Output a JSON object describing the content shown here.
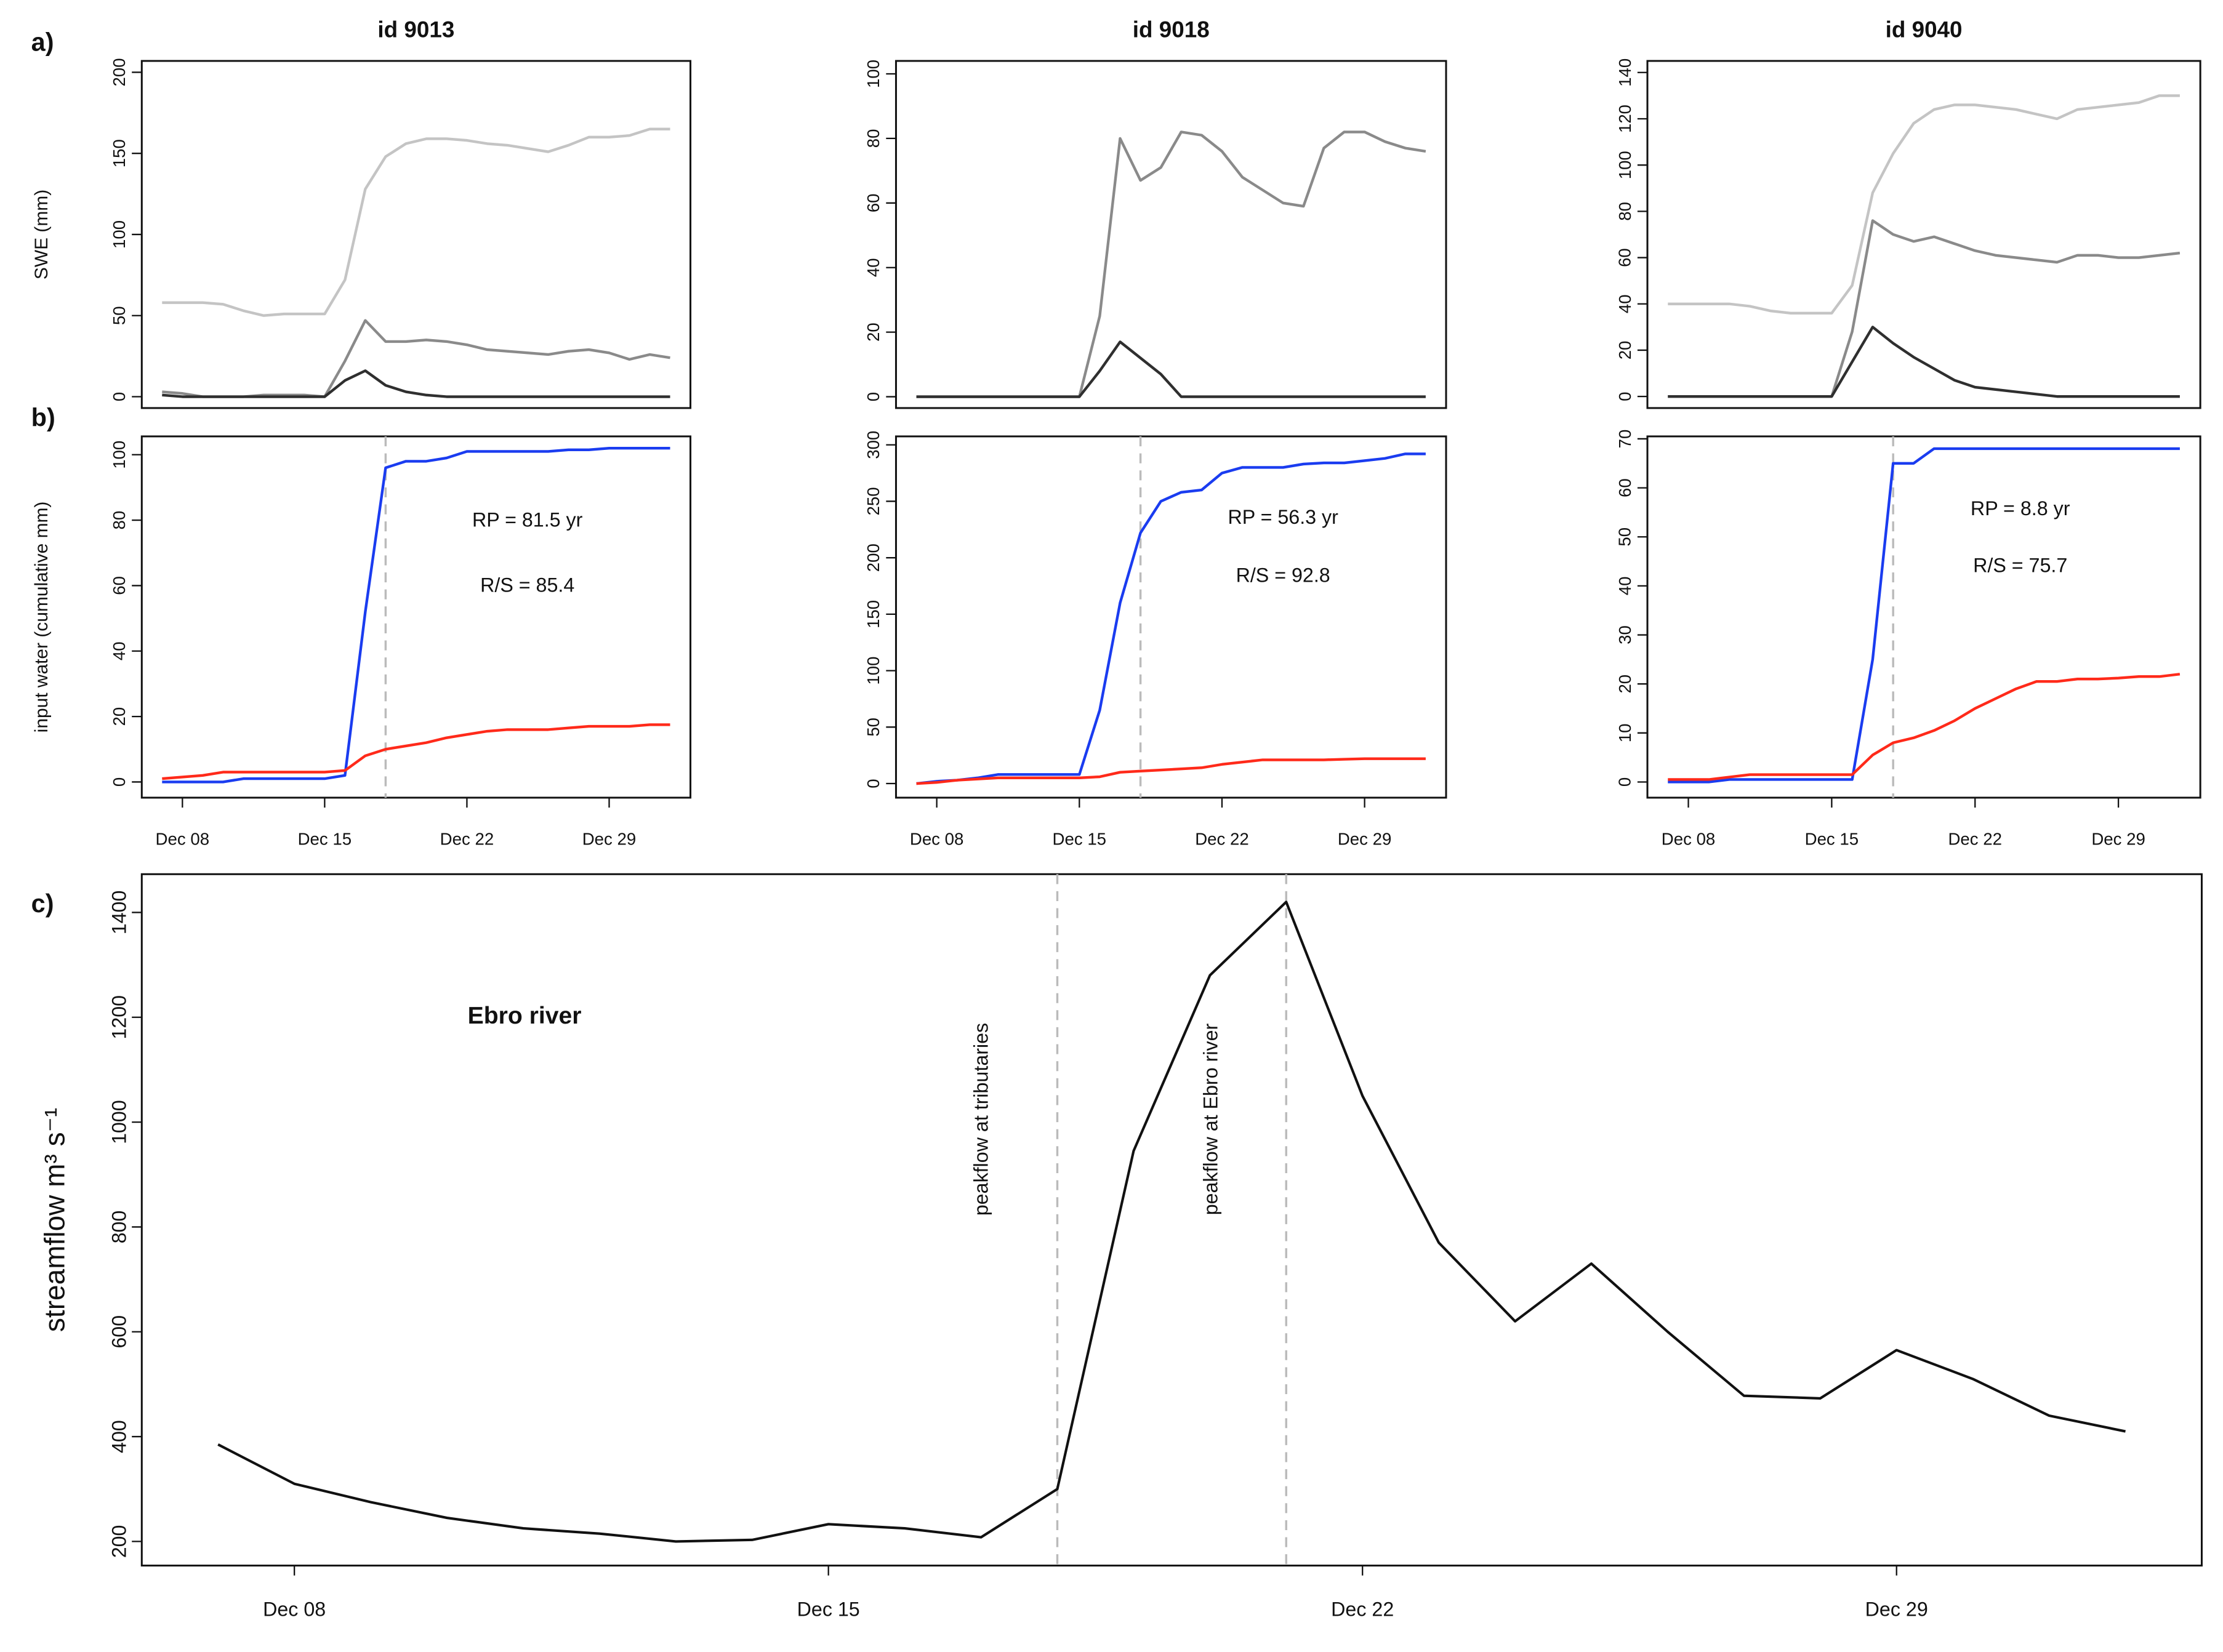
{
  "chart_data": [
    {
      "type": "line",
      "panel_label": "a)",
      "title": "id 9013",
      "ylabel": "SWE (mm)",
      "x": [
        7,
        8,
        9,
        10,
        11,
        12,
        13,
        14,
        15,
        16,
        17,
        18,
        19,
        20,
        21,
        22,
        23,
        24,
        25,
        26,
        27,
        28,
        29,
        30,
        31,
        32
      ],
      "xlim": [
        6,
        33
      ],
      "ylim": [
        -7,
        207
      ],
      "yticks": [
        0,
        50,
        100,
        150,
        200
      ],
      "series": [
        {
          "color": "#c4c4c4",
          "values": [
            58,
            58,
            58,
            57,
            53,
            50,
            51,
            51,
            51,
            72,
            128,
            148,
            156,
            159,
            159,
            158,
            156,
            155,
            153,
            151,
            155,
            160,
            160,
            161,
            165,
            165
          ]
        },
        {
          "color": "#8a8a8a",
          "values": [
            3,
            2,
            0,
            0,
            0,
            1,
            1,
            1,
            0,
            22,
            47,
            34,
            34,
            35,
            34,
            32,
            29,
            28,
            27,
            26,
            28,
            29,
            27,
            23,
            26,
            24
          ]
        },
        {
          "color": "#2f2f2f",
          "values": [
            1,
            0,
            0,
            0,
            0,
            0,
            0,
            0,
            0,
            10,
            16,
            7,
            3,
            1,
            0,
            0,
            0,
            0,
            0,
            0,
            0,
            0,
            0,
            0,
            0,
            0
          ]
        }
      ]
    },
    {
      "type": "line",
      "title": "id 9018",
      "x": [
        7,
        8,
        9,
        10,
        11,
        12,
        13,
        14,
        15,
        16,
        17,
        18,
        19,
        20,
        21,
        22,
        23,
        24,
        25,
        26,
        27,
        28,
        29,
        30,
        31,
        32
      ],
      "xlim": [
        6,
        33
      ],
      "ylim": [
        -3.5,
        104
      ],
      "yticks": [
        0,
        20,
        40,
        60,
        80,
        100
      ],
      "series": [
        {
          "color": "#8a8a8a",
          "values": [
            0,
            0,
            0,
            0,
            0,
            0,
            0,
            0,
            0,
            25,
            80,
            67,
            71,
            82,
            81,
            76,
            68,
            64,
            60,
            59,
            77,
            82,
            82,
            79,
            77,
            76
          ]
        },
        {
          "color": "#2f2f2f",
          "values": [
            0,
            0,
            0,
            0,
            0,
            0,
            0,
            0,
            0,
            8,
            17,
            12,
            7,
            0,
            0,
            0,
            0,
            0,
            0,
            0,
            0,
            0,
            0,
            0,
            0,
            0
          ]
        }
      ]
    },
    {
      "type": "line",
      "title": "id 9040",
      "x": [
        7,
        8,
        9,
        10,
        11,
        12,
        13,
        14,
        15,
        16,
        17,
        18,
        19,
        20,
        21,
        22,
        23,
        24,
        25,
        26,
        27,
        28,
        29,
        30,
        31,
        32
      ],
      "xlim": [
        6,
        33
      ],
      "ylim": [
        -5,
        145
      ],
      "yticks": [
        0,
        20,
        40,
        60,
        80,
        100,
        120,
        140
      ],
      "series": [
        {
          "color": "#c4c4c4",
          "values": [
            40,
            40,
            40,
            40,
            39,
            37,
            36,
            36,
            36,
            48,
            88,
            105,
            118,
            124,
            126,
            126,
            125,
            124,
            122,
            120,
            124,
            125,
            126,
            127,
            130,
            130
          ]
        },
        {
          "color": "#8a8a8a",
          "values": [
            0,
            0,
            0,
            0,
            0,
            0,
            0,
            0,
            0,
            28,
            76,
            70,
            67,
            69,
            66,
            63,
            61,
            60,
            59,
            58,
            61,
            61,
            60,
            60,
            61,
            62
          ]
        },
        {
          "color": "#2f2f2f",
          "values": [
            0,
            0,
            0,
            0,
            0,
            0,
            0,
            0,
            0,
            15,
            30,
            23,
            17,
            12,
            7,
            4,
            3,
            2,
            1,
            0,
            0,
            0,
            0,
            0,
            0,
            0
          ]
        }
      ]
    },
    {
      "type": "line",
      "panel_label": "b)",
      "ylabel": "input water (cumulative mm)",
      "x": [
        7,
        8,
        9,
        10,
        11,
        12,
        13,
        14,
        15,
        16,
        17,
        18,
        19,
        20,
        21,
        22,
        23,
        24,
        25,
        26,
        27,
        28,
        29,
        30,
        31,
        32
      ],
      "xlim": [
        6,
        33
      ],
      "ylim": [
        -4.8,
        105.6
      ],
      "yticks": [
        0,
        20,
        40,
        60,
        80,
        100
      ],
      "xticks": [
        {
          "value": 8,
          "label": "Dec 08"
        },
        {
          "value": 15,
          "label": "Dec 15"
        },
        {
          "value": 22,
          "label": "Dec 22"
        },
        {
          "value": 29,
          "label": "Dec 29"
        }
      ],
      "vlines": [
        18
      ],
      "annotations": [
        "RP = 81.5 yr",
        "R/S = 85.4"
      ],
      "series": [
        {
          "color": "#1a3cf0",
          "values": [
            0,
            0,
            0,
            0,
            1,
            1,
            1,
            1,
            1,
            2,
            52,
            96,
            98,
            98,
            99,
            101,
            101,
            101,
            101,
            101,
            101.5,
            101.5,
            102,
            102,
            102,
            102
          ]
        },
        {
          "color": "#ff2a1a",
          "values": [
            1,
            1.5,
            2,
            3,
            3,
            3,
            3,
            3,
            3,
            3.5,
            8,
            10,
            11,
            12,
            13.5,
            14.5,
            15.5,
            16,
            16,
            16,
            16.5,
            17,
            17,
            17,
            17.5,
            17.5
          ]
        }
      ]
    },
    {
      "type": "line",
      "x": [
        7,
        8,
        9,
        10,
        11,
        12,
        13,
        14,
        15,
        16,
        17,
        18,
        19,
        20,
        21,
        22,
        23,
        24,
        25,
        26,
        27,
        28,
        29,
        30,
        31,
        32
      ],
      "xlim": [
        6,
        33
      ],
      "ylim": [
        -12.5,
        307.5
      ],
      "yticks": [
        0,
        50,
        100,
        150,
        200,
        250,
        300
      ],
      "xticks": [
        {
          "value": 8,
          "label": "Dec 08"
        },
        {
          "value": 15,
          "label": "Dec 15"
        },
        {
          "value": 22,
          "label": "Dec 22"
        },
        {
          "value": 29,
          "label": "Dec 29"
        }
      ],
      "vlines": [
        18
      ],
      "annotations": [
        "RP = 56.3 yr",
        "R/S = 92.8"
      ],
      "series": [
        {
          "color": "#1a3cf0",
          "values": [
            0,
            2,
            3,
            5,
            8,
            8,
            8,
            8,
            8,
            65,
            160,
            222,
            250,
            258,
            260,
            275,
            280,
            280,
            280,
            283,
            284,
            284,
            286,
            288,
            292,
            292
          ]
        },
        {
          "color": "#ff2a1a",
          "values": [
            0,
            1,
            3,
            4,
            5,
            5,
            5,
            5,
            5,
            6,
            10,
            11,
            12,
            13,
            14,
            17,
            19,
            21,
            21,
            21,
            21,
            21.5,
            22,
            22,
            22,
            22
          ]
        }
      ]
    },
    {
      "type": "line",
      "x": [
        7,
        8,
        9,
        10,
        11,
        12,
        13,
        14,
        15,
        16,
        17,
        18,
        19,
        20,
        21,
        22,
        23,
        24,
        25,
        26,
        27,
        28,
        29,
        30,
        31,
        32
      ],
      "xlim": [
        6,
        33
      ],
      "ylim": [
        -3.2,
        70.5
      ],
      "yticks": [
        0,
        10,
        20,
        30,
        40,
        50,
        60,
        70
      ],
      "xticks": [
        {
          "value": 8,
          "label": "Dec 08"
        },
        {
          "value": 15,
          "label": "Dec 15"
        },
        {
          "value": 22,
          "label": "Dec 22"
        },
        {
          "value": 29,
          "label": "Dec 29"
        }
      ],
      "vlines": [
        18
      ],
      "annotations": [
        "RP = 8.8 yr",
        "R/S = 75.7"
      ],
      "series": [
        {
          "color": "#1a3cf0",
          "values": [
            0,
            0,
            0,
            0.5,
            0.5,
            0.5,
            0.5,
            0.5,
            0.5,
            0.5,
            25,
            65,
            65,
            68,
            68,
            68,
            68,
            68,
            68,
            68,
            68,
            68,
            68,
            68,
            68,
            68
          ]
        },
        {
          "color": "#ff2a1a",
          "values": [
            0.5,
            0.5,
            0.5,
            1,
            1.5,
            1.5,
            1.5,
            1.5,
            1.5,
            1.5,
            5.5,
            8,
            9,
            10.5,
            12.5,
            15,
            17,
            19,
            20.5,
            20.5,
            21,
            21,
            21.2,
            21.5,
            21.5,
            22
          ]
        }
      ]
    },
    {
      "type": "line",
      "panel_label": "c)",
      "ylabel": "streamflow m³ s⁻¹",
      "x": [
        7,
        8,
        9,
        10,
        11,
        12,
        13,
        14,
        15,
        16,
        17,
        18,
        19,
        20,
        21,
        22,
        23,
        24,
        25,
        26,
        27,
        28,
        29,
        30,
        31,
        32
      ],
      "xlim": [
        6,
        33
      ],
      "ylim": [
        154,
        1473
      ],
      "yticks": [
        200,
        400,
        600,
        800,
        1000,
        1200,
        1400
      ],
      "xticks": [
        {
          "value": 8,
          "label": "Dec 08"
        },
        {
          "value": 15,
          "label": "Dec 15"
        },
        {
          "value": 22,
          "label": "Dec 22"
        },
        {
          "value": 29,
          "label": "Dec 29"
        }
      ],
      "vlines": [
        18,
        21
      ],
      "annotations": [
        "Ebro river",
        "peakflow at tributaries",
        "peakflow at Ebro river"
      ],
      "series": [
        {
          "color": "#111111",
          "values": [
            385,
            310,
            275,
            245,
            225,
            215,
            200,
            203,
            233,
            225,
            208,
            300,
            945,
            1280,
            1420,
            1050,
            770,
            620,
            730,
            600,
            478,
            473,
            565,
            510,
            440,
            410
          ]
        }
      ]
    }
  ]
}
